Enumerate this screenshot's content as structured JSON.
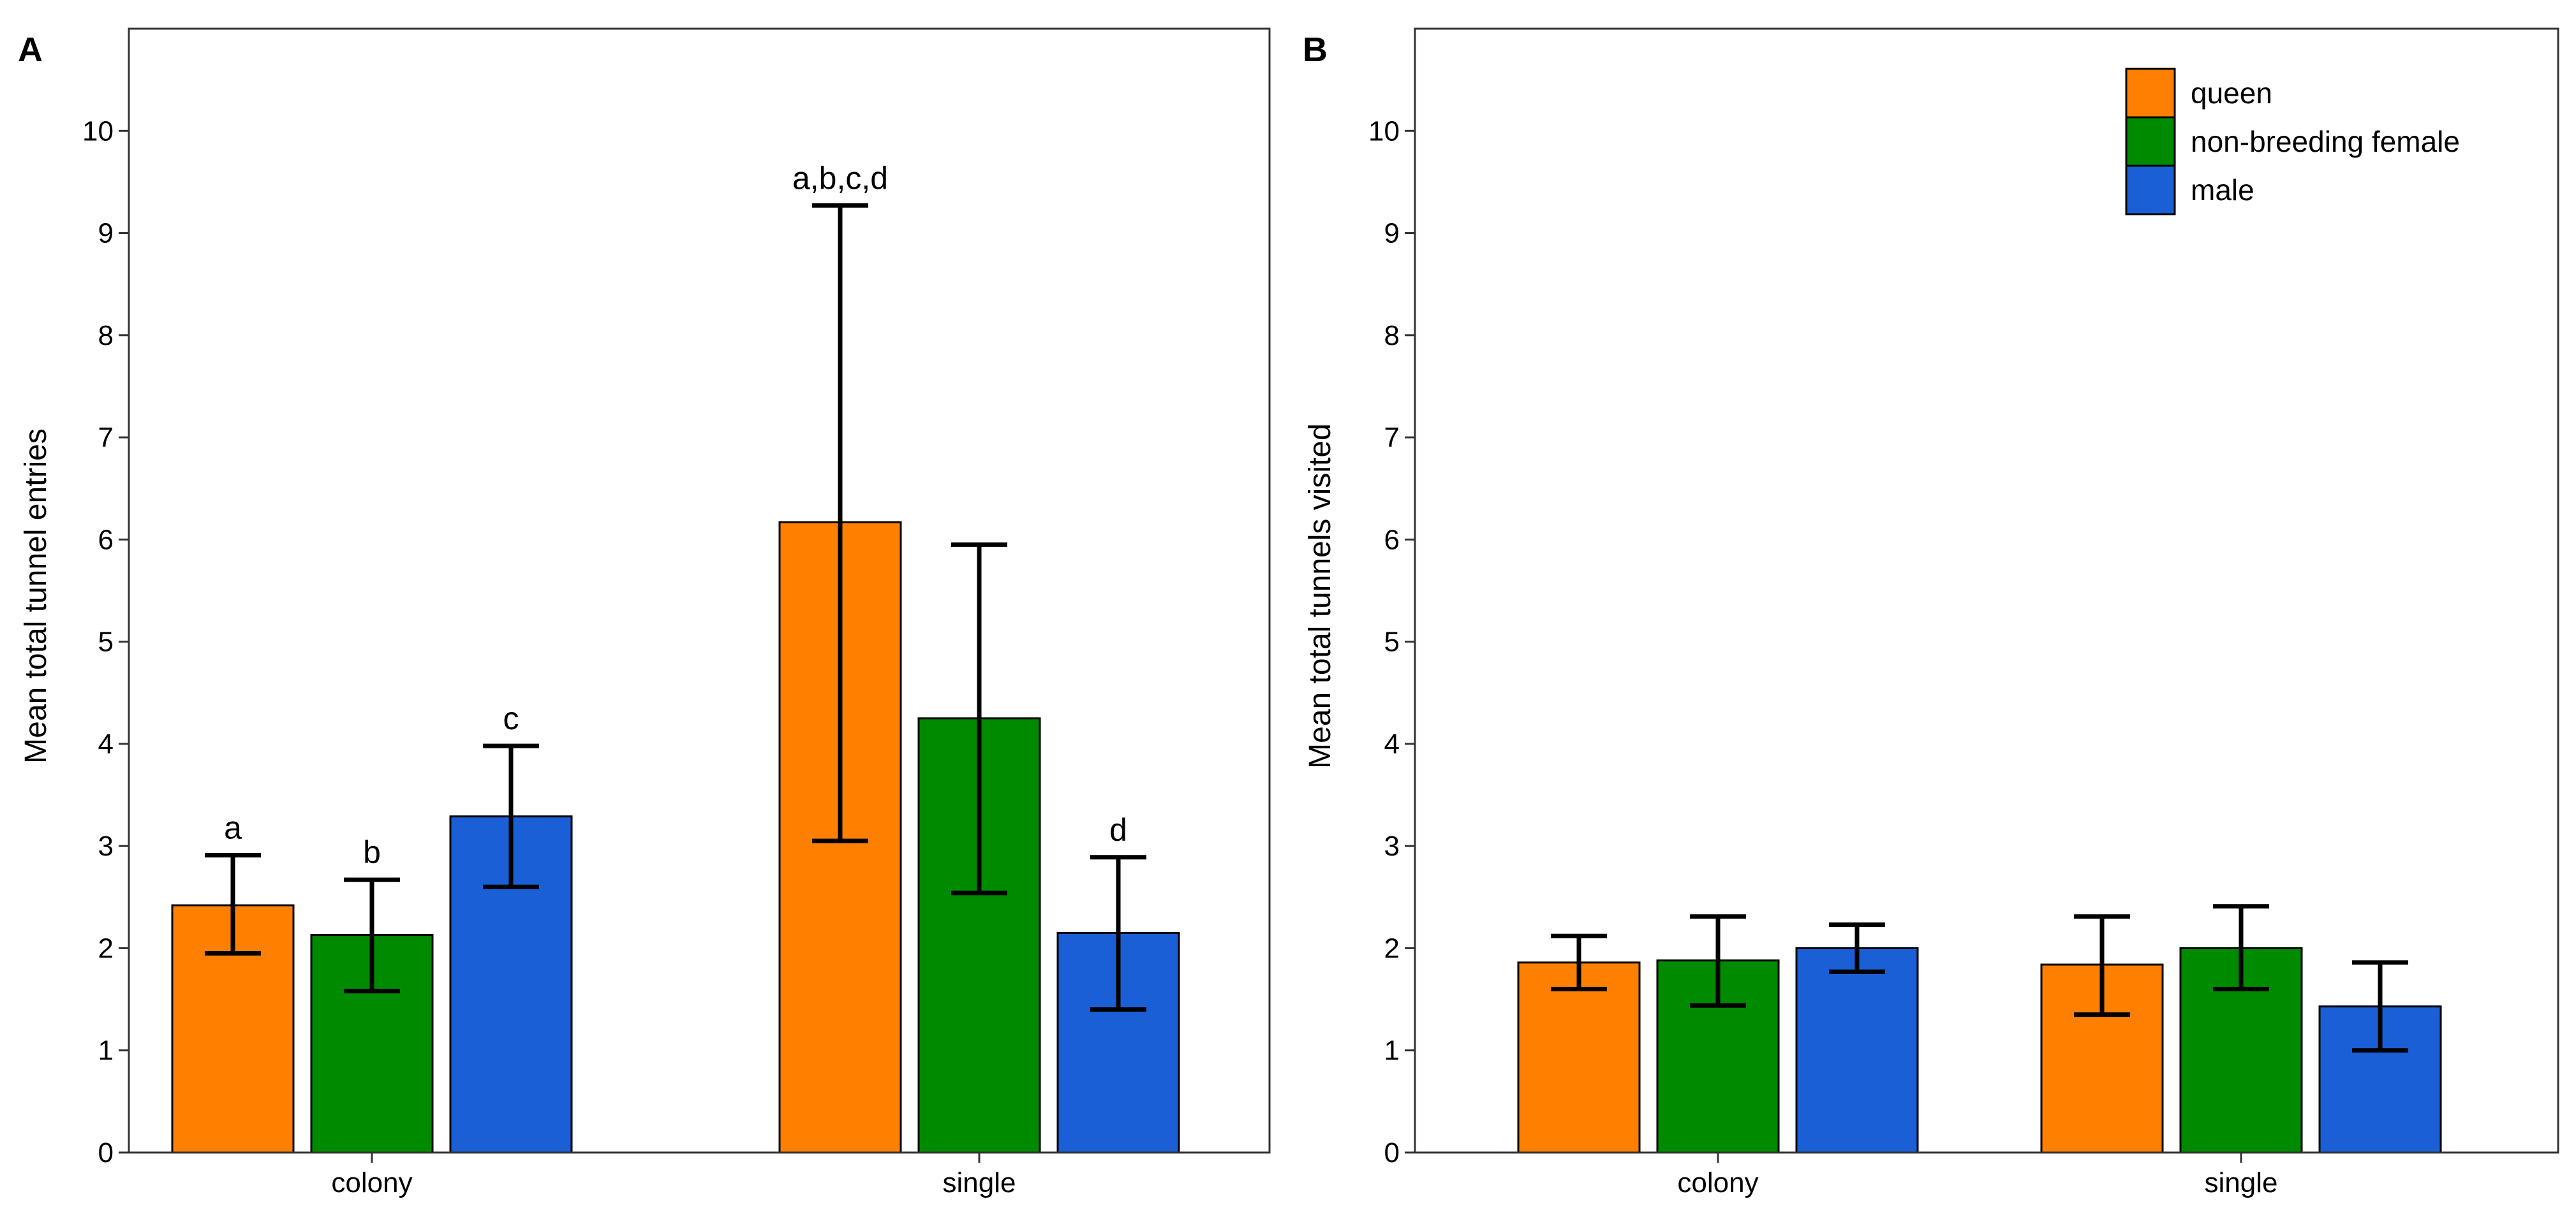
{
  "figure": {
    "panel_letters": [
      "A",
      "B"
    ]
  },
  "colors": {
    "queen": "#FF7F00",
    "non-breeding female": "#008A00",
    "male": "#1A5FD6",
    "frame": "#333333",
    "ink": "#000000"
  },
  "chart_data": [
    {
      "panel": "A",
      "type": "bar",
      "title": "",
      "xlabel": "",
      "ylabel": "Mean total tunnel entries",
      "categories": [
        "colony",
        "single"
      ],
      "ylim": [
        0,
        11
      ],
      "yticks": [
        0,
        1,
        2,
        3,
        4,
        5,
        6,
        7,
        8,
        9,
        10
      ],
      "grid": false,
      "legend": null,
      "series": [
        {
          "name": "queen",
          "values": [
            2.42,
            6.17
          ],
          "error_low": [
            1.95,
            3.05
          ],
          "error_high": [
            2.91,
            9.27
          ],
          "labels": [
            "a",
            "a,b,c,d"
          ]
        },
        {
          "name": "non-breeding female",
          "values": [
            2.13,
            4.25
          ],
          "error_low": [
            1.58,
            2.54
          ],
          "error_high": [
            2.67,
            5.95
          ],
          "labels": [
            "b",
            ""
          ]
        },
        {
          "name": "male",
          "values": [
            3.29,
            2.15
          ],
          "error_low": [
            2.6,
            1.4
          ],
          "error_high": [
            3.98,
            2.89
          ],
          "labels": [
            "c",
            "d"
          ]
        }
      ]
    },
    {
      "panel": "B",
      "type": "bar",
      "title": "",
      "xlabel": "",
      "ylabel": "Mean total tunnels visited",
      "categories": [
        "colony",
        "single"
      ],
      "ylim": [
        0,
        11
      ],
      "yticks": [
        0,
        1,
        2,
        3,
        4,
        5,
        6,
        7,
        8,
        9,
        10
      ],
      "grid": false,
      "legend": "top-right",
      "legend_entries": [
        "queen",
        "non-breeding female",
        "male"
      ],
      "series": [
        {
          "name": "queen",
          "values": [
            1.86,
            1.84
          ],
          "error_low": [
            1.6,
            1.35
          ],
          "error_high": [
            2.12,
            2.31
          ],
          "labels": [
            "",
            ""
          ]
        },
        {
          "name": "non-breeding female",
          "values": [
            1.88,
            2.0
          ],
          "error_low": [
            1.44,
            1.6
          ],
          "error_high": [
            2.31,
            2.41
          ],
          "labels": [
            "",
            ""
          ]
        },
        {
          "name": "male",
          "values": [
            2.0,
            1.43
          ],
          "error_low": [
            1.77,
            1.0
          ],
          "error_high": [
            2.23,
            1.86
          ],
          "labels": [
            "",
            ""
          ]
        }
      ]
    }
  ]
}
